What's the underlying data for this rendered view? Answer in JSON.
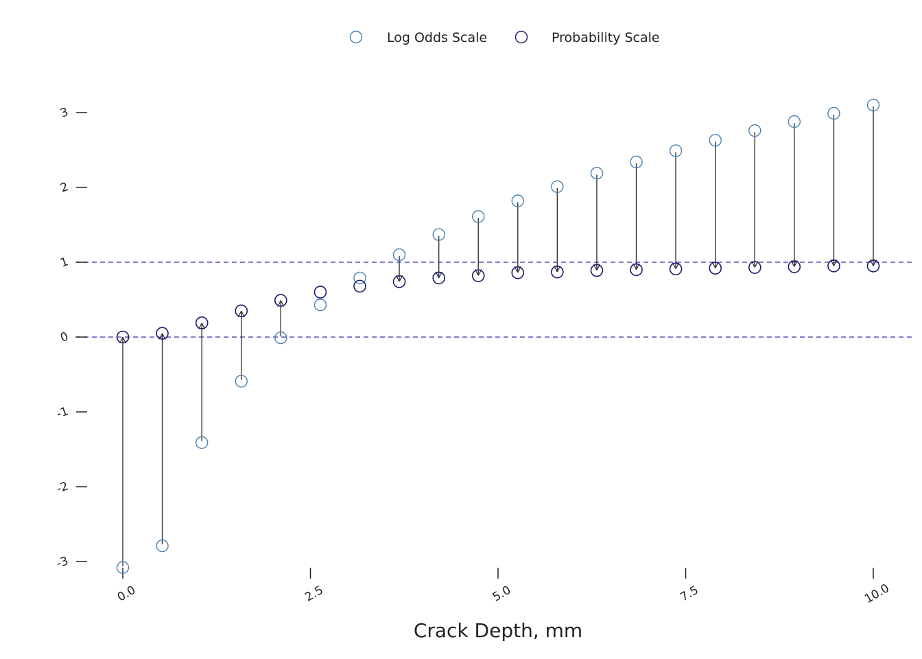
{
  "chart_data": {
    "type": "scatter",
    "title": "",
    "xlabel": "Crack Depth, mm",
    "ylabel": "",
    "xlim": [
      -0.3,
      10.4
    ],
    "ylim": [
      -3.1,
      3.45
    ],
    "x_ticks": [
      0,
      2.5,
      5,
      7.5,
      10
    ],
    "x_tick_labels": [
      "0.0",
      "2.5",
      "5.0",
      "7.5",
      "10.0"
    ],
    "y_ticks": [
      -3,
      -2,
      -1,
      0,
      1,
      2,
      3
    ],
    "y_tick_labels": [
      "-3",
      "-2",
      "-1",
      "0",
      "1",
      "2",
      "3"
    ],
    "reference_lines": [
      0,
      1
    ],
    "reference_line_color": "#5b4fc4",
    "grid": false,
    "legend_position": "top",
    "x": [
      0.0,
      0.526,
      1.053,
      1.579,
      2.105,
      2.632,
      3.158,
      3.684,
      4.211,
      4.737,
      5.263,
      5.789,
      6.316,
      6.842,
      7.368,
      7.895,
      8.421,
      8.947,
      9.474,
      10.0
    ],
    "series": [
      {
        "name": "Log Odds Scale",
        "color": "#4a7fb0",
        "values": [
          -3.08,
          -2.79,
          -1.41,
          -0.59,
          -0.01,
          0.43,
          0.79,
          1.1,
          1.37,
          1.61,
          1.82,
          2.01,
          2.19,
          2.34,
          2.49,
          2.63,
          2.76,
          2.88,
          2.99,
          3.1
        ]
      },
      {
        "name": "Probability Scale",
        "color": "#1a1a6e",
        "values": [
          0.0,
          0.05,
          0.19,
          0.35,
          0.49,
          0.6,
          0.68,
          0.74,
          0.79,
          0.82,
          0.86,
          0.87,
          0.89,
          0.9,
          0.91,
          0.92,
          0.93,
          0.94,
          0.95,
          0.95
        ]
      }
    ],
    "arrow_color": "#333333"
  }
}
